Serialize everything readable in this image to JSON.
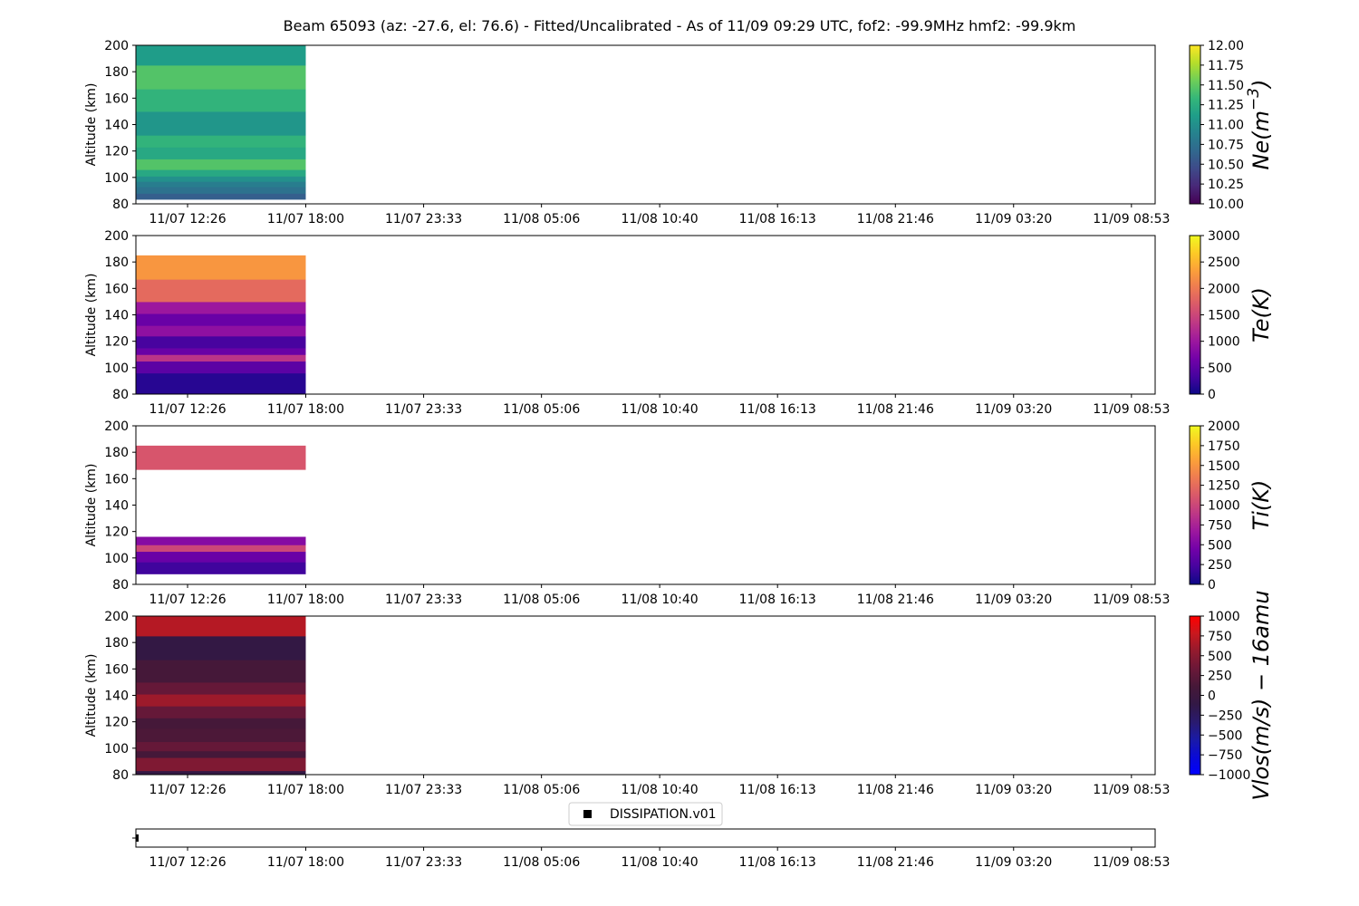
{
  "title": "Beam 65093 (az: -27.6, el: 76.6) - Fitted/Uncalibrated - As of 11/09 09:29 UTC, fof2: -99.9MHz  hmf2: -99.9km",
  "chart_data": [
    {
      "type": "heatmap",
      "id": "ne",
      "ylabel": "Altitude (km)",
      "ylim": [
        80,
        200
      ],
      "yticks": [
        80,
        100,
        120,
        140,
        160,
        180,
        200
      ],
      "xticks": [
        "11/07 12:26",
        "11/07 18:00",
        "11/07 23:33",
        "11/08 05:06",
        "11/08 10:40",
        "11/08 16:13",
        "11/08 21:46",
        "11/09 03:20",
        "11/09 08:53"
      ],
      "colorbar": {
        "label": "Ne(m^-3)",
        "label_parts": [
          "Ne(m",
          "−3",
          ")"
        ],
        "colormap": "viridis",
        "range": [
          10.0,
          12.0
        ],
        "ticks": [
          "10.00",
          "10.25",
          "10.50",
          "10.75",
          "11.00",
          "11.25",
          "11.50",
          "11.75",
          "12.00"
        ]
      },
      "data_x_range": [
        "11/07 10:00",
        "11/07 18:00"
      ],
      "rows": [
        {
          "alt": [
            83.5,
            88
          ],
          "value": 10.6
        },
        {
          "alt": [
            88,
            93
          ],
          "value": 10.75
        },
        {
          "alt": [
            93,
            97
          ],
          "value": 10.85
        },
        {
          "alt": [
            97,
            101
          ],
          "value": 11.0
        },
        {
          "alt": [
            101,
            106
          ],
          "value": 11.2
        },
        {
          "alt": [
            106,
            114
          ],
          "value": 11.45
        },
        {
          "alt": [
            114,
            123
          ],
          "value": 11.2
        },
        {
          "alt": [
            123,
            132
          ],
          "value": 11.3
        },
        {
          "alt": [
            132,
            150
          ],
          "value": 11.05
        },
        {
          "alt": [
            150,
            167
          ],
          "value": 11.3
        },
        {
          "alt": [
            167,
            185
          ],
          "value": 11.45
        },
        {
          "alt": [
            185,
            200
          ],
          "value": 11.1
        }
      ]
    },
    {
      "type": "heatmap",
      "id": "te",
      "ylabel": "Altitude (km)",
      "ylim": [
        80,
        200
      ],
      "yticks": [
        80,
        100,
        120,
        140,
        160,
        180,
        200
      ],
      "xticks": [
        "11/07 12:26",
        "11/07 18:00",
        "11/07 23:33",
        "11/08 05:06",
        "11/08 10:40",
        "11/08 16:13",
        "11/08 21:46",
        "11/09 03:20",
        "11/09 08:53"
      ],
      "colorbar": {
        "label": "Te(K)",
        "label_parts": [
          "Te(K)",
          "",
          ""
        ],
        "colormap": "plasma",
        "range": [
          0,
          3000
        ],
        "ticks": [
          "0",
          "500",
          "1000",
          "1500",
          "2000",
          "2500",
          "3000"
        ]
      },
      "data_x_range": [
        "11/07 10:00",
        "11/07 18:00"
      ],
      "rows": [
        {
          "alt": [
            80,
            96
          ],
          "value": 150
        },
        {
          "alt": [
            96,
            105
          ],
          "value": 500
        },
        {
          "alt": [
            105,
            110
          ],
          "value": 1300
        },
        {
          "alt": [
            110,
            115
          ],
          "value": 600
        },
        {
          "alt": [
            115,
            124
          ],
          "value": 350
        },
        {
          "alt": [
            124,
            132
          ],
          "value": 900
        },
        {
          "alt": [
            132,
            141
          ],
          "value": 600
        },
        {
          "alt": [
            141,
            150
          ],
          "value": 1000
        },
        {
          "alt": [
            150,
            167
          ],
          "value": 1850
        },
        {
          "alt": [
            167,
            185
          ],
          "value": 2250
        }
      ]
    },
    {
      "type": "heatmap",
      "id": "ti",
      "ylabel": "Altitude (km)",
      "ylim": [
        80,
        200
      ],
      "yticks": [
        80,
        100,
        120,
        140,
        160,
        180,
        200
      ],
      "xticks": [
        "11/07 12:26",
        "11/07 18:00",
        "11/07 23:33",
        "11/08 05:06",
        "11/08 10:40",
        "11/08 16:13",
        "11/08 21:46",
        "11/09 03:20",
        "11/09 08:53"
      ],
      "colorbar": {
        "label": "Ti(K)",
        "label_parts": [
          "Ti(K)",
          "",
          ""
        ],
        "colormap": "plasma",
        "range": [
          0,
          2000
        ],
        "ticks": [
          "0",
          "250",
          "500",
          "750",
          "1000",
          "1250",
          "1500",
          "1750",
          "2000"
        ]
      },
      "data_x_range": [
        "11/07 10:00",
        "11/07 18:00"
      ],
      "rows": [
        {
          "alt": [
            88,
            97
          ],
          "value": 200
        },
        {
          "alt": [
            97,
            105
          ],
          "value": 400
        },
        {
          "alt": [
            105,
            110
          ],
          "value": 1000
        },
        {
          "alt": [
            110,
            116
          ],
          "value": 550
        },
        {
          "alt": [
            167,
            185
          ],
          "value": 1100
        }
      ]
    },
    {
      "type": "heatmap",
      "id": "vlos",
      "ylabel": "Altitude (km)",
      "ylim": [
        80,
        200
      ],
      "yticks": [
        80,
        100,
        120,
        140,
        160,
        180,
        200
      ],
      "xticks": [
        "11/07 12:26",
        "11/07 18:00",
        "11/07 23:33",
        "11/08 05:06",
        "11/08 10:40",
        "11/08 16:13",
        "11/08 21:46",
        "11/09 03:20",
        "11/09 08:53"
      ],
      "colorbar": {
        "label": "Vlos(m/s) − 16amu",
        "label_parts": [
          "Vlos(m/s) − 16amu",
          "",
          ""
        ],
        "colormap": "blue-black-red",
        "range": [
          -1000,
          1000
        ],
        "ticks": [
          "−1000",
          "−750",
          "−500",
          "−250",
          "0",
          "250",
          "500",
          "750",
          "1000"
        ]
      },
      "data_x_range": [
        "11/07 10:00",
        "11/07 18:00"
      ],
      "rows": [
        {
          "alt": [
            80,
            83
          ],
          "value": -100
        },
        {
          "alt": [
            83,
            93
          ],
          "value": 450
        },
        {
          "alt": [
            93,
            98
          ],
          "value": 100
        },
        {
          "alt": [
            98,
            105
          ],
          "value": 300
        },
        {
          "alt": [
            105,
            115
          ],
          "value": 150
        },
        {
          "alt": [
            115,
            123
          ],
          "value": 100
        },
        {
          "alt": [
            123,
            132
          ],
          "value": 300
        },
        {
          "alt": [
            132,
            141
          ],
          "value": 600
        },
        {
          "alt": [
            141,
            150
          ],
          "value": 300
        },
        {
          "alt": [
            150,
            167
          ],
          "value": 100
        },
        {
          "alt": [
            167,
            185
          ],
          "value": -100
        },
        {
          "alt": [
            185,
            200
          ],
          "value": 700
        }
      ]
    }
  ],
  "legend": {
    "marker": "square",
    "label": "DISSIPATION.v01",
    "placement": "bottom-center",
    "color": "#000000"
  },
  "mode_strip": {
    "xticks": [
      "11/07 12:26",
      "11/07 18:00",
      "11/07 23:33",
      "11/08 05:06",
      "11/08 10:40",
      "11/08 16:13",
      "11/08 21:46",
      "11/09 03:20",
      "11/09 08:53"
    ],
    "marker_time": "11/07 10:05",
    "marker_color": "#000000"
  },
  "x_axis_time_range": [
    "11/07 10:00",
    "11/09 10:00"
  ]
}
